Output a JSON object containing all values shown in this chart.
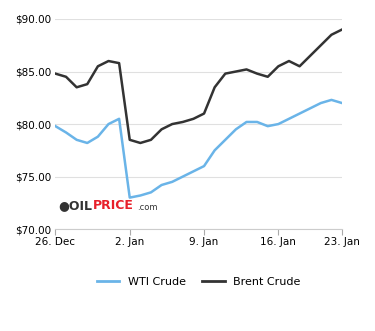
{
  "wti_x": [
    0,
    1,
    2,
    3,
    4,
    5,
    6,
    7,
    8,
    9,
    10,
    11,
    12,
    13,
    14,
    15,
    16,
    17,
    18,
    19,
    20,
    21,
    22,
    23,
    24,
    25,
    26,
    27
  ],
  "wti_y": [
    79.8,
    79.2,
    78.5,
    78.2,
    78.8,
    80.0,
    80.5,
    73.0,
    73.2,
    73.5,
    74.2,
    74.5,
    75.0,
    75.5,
    76.0,
    77.5,
    78.5,
    79.5,
    80.2,
    80.2,
    79.8,
    80.0,
    80.5,
    81.0,
    81.5,
    82.0,
    82.3,
    82.0
  ],
  "brent_x": [
    0,
    1,
    2,
    3,
    4,
    5,
    6,
    7,
    8,
    9,
    10,
    11,
    12,
    13,
    14,
    15,
    16,
    17,
    18,
    19,
    20,
    21,
    22,
    23,
    24,
    25,
    26,
    27
  ],
  "brent_y": [
    84.8,
    84.5,
    83.5,
    83.8,
    85.5,
    86.0,
    85.8,
    78.5,
    78.2,
    78.5,
    79.5,
    80.0,
    80.2,
    80.5,
    81.0,
    83.5,
    84.8,
    85.0,
    85.2,
    84.8,
    84.5,
    85.5,
    86.0,
    85.5,
    86.5,
    87.5,
    88.5,
    89.0
  ],
  "wti_color": "#6ab4e8",
  "brent_color": "#333333",
  "bg_color": "#ffffff",
  "grid_color": "#e0e0e0",
  "ylim": [
    70.0,
    90.0
  ],
  "yticks": [
    70.0,
    75.0,
    80.0,
    85.0,
    90.0
  ],
  "xtick_positions": [
    0,
    7,
    14,
    21,
    27
  ],
  "xtick_labels": [
    "26. Dec",
    "2. Jan",
    "9. Jan",
    "16. Jan",
    "23. Jan"
  ],
  "legend_wti": "WTI Crude",
  "legend_brent": "Brent Crude",
  "line_width": 1.8
}
